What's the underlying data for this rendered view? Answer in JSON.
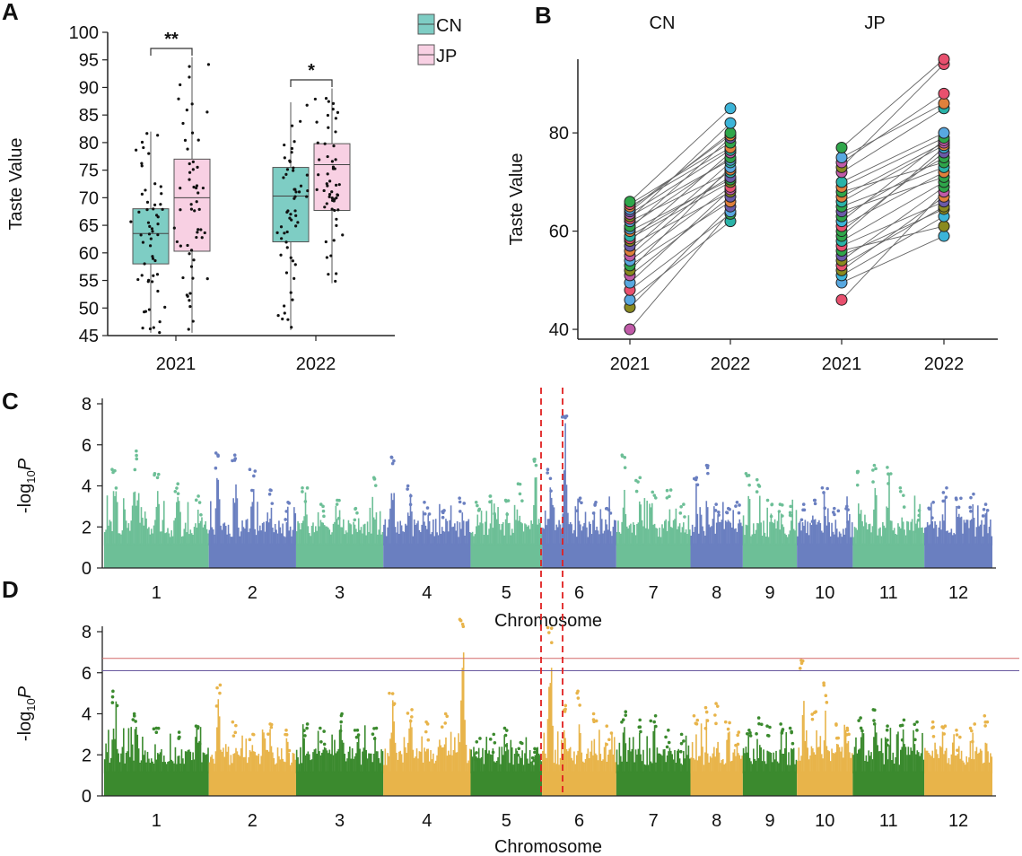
{
  "panels": {
    "A": {
      "label": "A"
    },
    "B": {
      "label": "B"
    },
    "C": {
      "label": "C"
    },
    "D": {
      "label": "D"
    }
  },
  "chart_data": [
    {
      "panel": "A",
      "type": "box",
      "ylabel": "Taste Value",
      "ylim": [
        45,
        100
      ],
      "yticks": [
        45,
        50,
        55,
        60,
        65,
        70,
        75,
        80,
        85,
        90,
        95,
        100
      ],
      "categories": [
        "2021",
        "2022"
      ],
      "legend": {
        "placement": "top-right",
        "entries": [
          "CN",
          "JP"
        ]
      },
      "series": [
        {
          "name": "CN",
          "color": "#7ecdc4",
          "boxes": [
            {
              "year": "2021",
              "min": 45.5,
              "q1": 58.0,
              "median": 63.5,
              "q3": 68.0,
              "max": 82.0
            },
            {
              "year": "2022",
              "min": 46.0,
              "q1": 62.0,
              "median": 70.3,
              "q3": 75.5,
              "max": 87.3
            }
          ]
        },
        {
          "name": "JP",
          "color": "#f8d0e3",
          "boxes": [
            {
              "year": "2021",
              "min": 45.5,
              "q1": 60.3,
              "median": 70.0,
              "q3": 77.0,
              "max": 95.5
            },
            {
              "year": "2022",
              "min": 54.5,
              "q1": 67.7,
              "median": 76.0,
              "q3": 79.8,
              "max": 89.8
            }
          ]
        }
      ],
      "significance": [
        {
          "year": "2021",
          "text": "**"
        },
        {
          "year": "2022",
          "text": "*"
        }
      ]
    },
    {
      "panel": "B",
      "type": "paired-line",
      "ylabel": "Taste Value",
      "ylim": [
        38,
        95
      ],
      "yticks": [
        40,
        60,
        80
      ],
      "groups": [
        {
          "name": "CN",
          "x": [
            "2021",
            "2022"
          ],
          "from": [
            40,
            44.5,
            46,
            48,
            49.5,
            51,
            52,
            53,
            54,
            55,
            56,
            57,
            58,
            58.5,
            59,
            60,
            60.5,
            61,
            62,
            62.5,
            63,
            63.5,
            64,
            64.5,
            65,
            65.5,
            66
          ],
          "to": [
            62,
            63.5,
            64,
            65,
            66,
            67,
            68,
            68.5,
            69,
            70,
            70.5,
            71,
            72,
            72.5,
            73,
            74,
            74.5,
            75,
            76,
            76.5,
            77,
            78,
            79,
            79.5,
            80,
            82,
            85
          ]
        },
        {
          "name": "JP",
          "x": [
            "2021",
            "2022"
          ],
          "from": [
            46,
            49.5,
            51,
            52,
            53,
            54,
            55,
            56,
            57,
            58,
            59,
            60,
            61,
            62,
            63,
            64,
            65,
            66,
            67,
            68,
            69,
            70,
            72,
            73,
            74,
            75,
            77
          ],
          "to": [
            59,
            61,
            63,
            64.5,
            65,
            66,
            67,
            68,
            69,
            70,
            71,
            72,
            73,
            74,
            75,
            76,
            77,
            77.5,
            78,
            78.5,
            79,
            80,
            85,
            86,
            88,
            94,
            95
          ]
        }
      ],
      "point_colors": [
        "#3cb4d8",
        "#e8506e",
        "#2fa64a",
        "#6a5aa8",
        "#e0803c",
        "#2ab3a8",
        "#c05aa8",
        "#8a8a20",
        "#58a8e0"
      ]
    },
    {
      "panel": "C",
      "type": "manhattan",
      "ylabel": "-log10P",
      "xlabel": "Chromosome",
      "ylim": [
        0,
        8
      ],
      "yticks": [
        0,
        2,
        4,
        6,
        8
      ],
      "chromosomes": [
        "1",
        "2",
        "3",
        "4",
        "5",
        "6",
        "7",
        "8",
        "9",
        "10",
        "11",
        "12"
      ],
      "colors": [
        "#6dbf97",
        "#6a7fc0"
      ],
      "peaks": [
        [
          4.8,
          5.7,
          4.6,
          4.1,
          3.5
        ],
        [
          5.6,
          5.5,
          4.8,
          3.8,
          3.2
        ],
        [
          3.9,
          3.1,
          3.3,
          2.9,
          4.4
        ],
        [
          5.4,
          4.0,
          3.2,
          2.8,
          3.4
        ],
        [
          3.2,
          3.5,
          3.3,
          4.1,
          5.3
        ],
        [
          4.8,
          7.4,
          3.4,
          3.2,
          2.9
        ],
        [
          5.5,
          4.4,
          3.7,
          3.8,
          3.1
        ],
        [
          4.4,
          5.0,
          3.1,
          2.9,
          3.2
        ],
        [
          4.6,
          4.3,
          3.3,
          3.1,
          3.0
        ],
        [
          3.1,
          3.3,
          3.9,
          2.9,
          3.0
        ],
        [
          4.7,
          5.0,
          4.9,
          3.9,
          2.8
        ],
        [
          3.2,
          3.9,
          3.4,
          3.6,
          3.1
        ]
      ],
      "highlight_region": {
        "chromosome": "6",
        "from_fraction": 0.0,
        "to_fraction": 0.25
      }
    },
    {
      "panel": "D",
      "type": "manhattan",
      "ylabel": "-log10P",
      "xlabel": "Chromosome",
      "ylim": [
        0,
        8
      ],
      "yticks": [
        0,
        2,
        4,
        6,
        8
      ],
      "chromosomes": [
        "1",
        "2",
        "3",
        "4",
        "5",
        "6",
        "7",
        "8",
        "9",
        "10",
        "11",
        "12"
      ],
      "colors": [
        "#3b8a2e",
        "#e8b44a"
      ],
      "thresholds": [
        {
          "value": 6.7,
          "color": "#d46a6a"
        },
        {
          "value": 6.1,
          "color": "#6a5aa0"
        }
      ],
      "peaks": [
        [
          5.1,
          4.0,
          3.3,
          3.1,
          3.4
        ],
        [
          5.4,
          3.6,
          3.0,
          3.5,
          3.2
        ],
        [
          3.5,
          3.3,
          4.0,
          3.2,
          3.3
        ],
        [
          5.0,
          4.2,
          3.6,
          4.0,
          8.6
        ],
        [
          2.8,
          3.0,
          3.3,
          2.6,
          2.3
        ],
        [
          8.2,
          4.4,
          5.1,
          4.0,
          3.4
        ],
        [
          4.1,
          3.7,
          3.9,
          3.2,
          3.0
        ],
        [
          3.9,
          4.3,
          4.5,
          3.6,
          3.1
        ],
        [
          3.2,
          3.8,
          3.4,
          3.5,
          3.3
        ],
        [
          6.6,
          4.1,
          5.5,
          3.5,
          3.3
        ],
        [
          3.8,
          4.2,
          3.4,
          3.7,
          3.6
        ],
        [
          3.6,
          3.4,
          3.2,
          3.5,
          3.9
        ]
      ],
      "highlight_region": {
        "chromosome": "6",
        "from_fraction": 0.0,
        "to_fraction": 0.25
      }
    }
  ]
}
